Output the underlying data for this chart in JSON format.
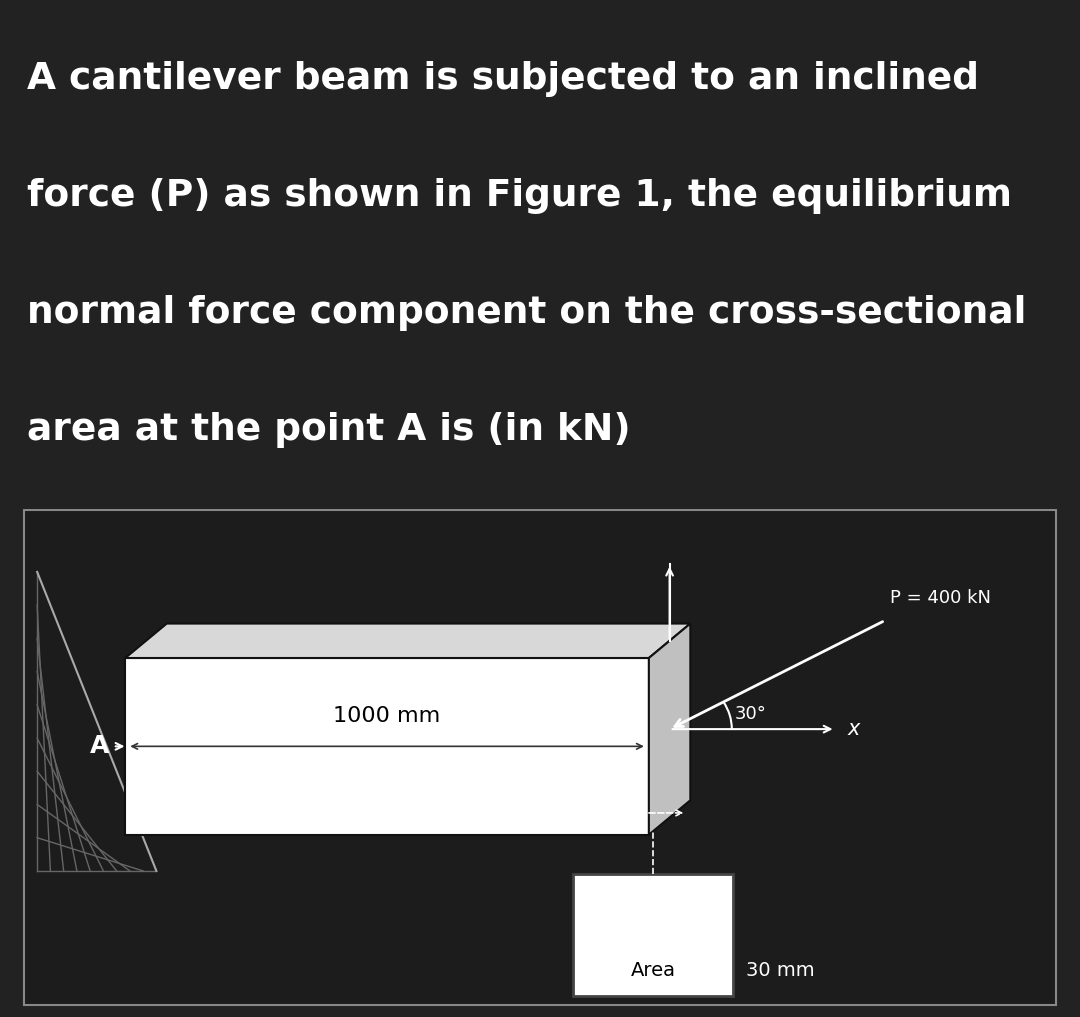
{
  "bg_color": "#222222",
  "text_color": "#ffffff",
  "diagram_bg": "#1c1c1c",
  "title_lines": [
    "A cantilever beam is subjected to an inclined",
    "force (P) as shown in Figure 1, the equilibrium",
    "normal force component on the cross-sectional",
    "area at the point A is (in kN)"
  ],
  "title_fontsize": 27,
  "title_fontweight": "bold",
  "beam_face_color": "#ffffff",
  "beam_top_color": "#d8d8d8",
  "cross_section_color": "#c0c0c0",
  "force_label": "P = 400 kN",
  "angle_label": "30°",
  "length_label": "1000 mm",
  "area_label": "Area",
  "dim_label": "30 mm",
  "x_label": "x",
  "A_label": "A"
}
